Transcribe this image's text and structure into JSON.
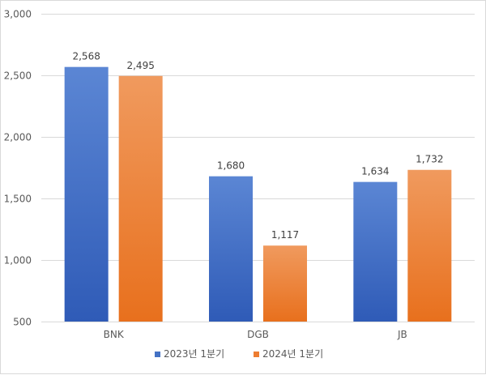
{
  "chart_data": {
    "type": "bar",
    "title": "",
    "xlabel": "",
    "ylabel": "",
    "categories": [
      "BNK",
      "DGB",
      "JB"
    ],
    "series": [
      {
        "name": "2023년 1분기",
        "values": [
          2568,
          1680,
          1634
        ],
        "value_labels": [
          "2,568",
          "1,680",
          "1,634"
        ],
        "color": "#4472C4",
        "color_light": "#5B86D4",
        "color_dark": "#2F5BB7"
      },
      {
        "name": "2024년 1분기",
        "values": [
          2495,
          1117,
          1732
        ],
        "value_labels": [
          "2,495",
          "1,117",
          "1,732"
        ],
        "color": "#ED7D31",
        "color_light": "#F09A5E",
        "color_dark": "#E8701D"
      }
    ],
    "ylim": [
      500,
      3000
    ],
    "yticks": [
      500,
      1000,
      1500,
      2000,
      2500,
      3000
    ],
    "ytick_labels": [
      "500",
      "1,000",
      "1,500",
      "2,000",
      "2,500",
      "3,000"
    ],
    "grid": true,
    "gridline_color": "#d9d9d9",
    "legend_position": "bottom"
  }
}
